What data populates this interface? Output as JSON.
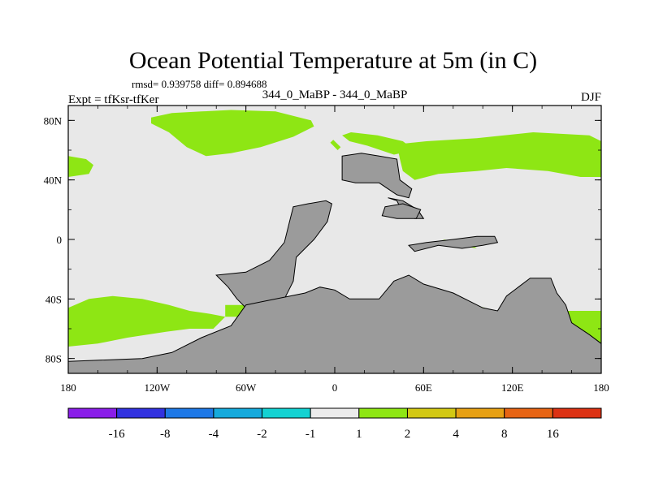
{
  "chart_data": {
    "type": "heatmap",
    "title": "Ocean Potential Temperature at 5m (in C)",
    "stats_label": "rmsd= 0.939758 diff= 0.894688",
    "subtitle_center": "344_0_MaBP - 344_0_MaBP",
    "subtitle_left": "Expt = tfKsr-tfKer",
    "subtitle_right": "DJF",
    "x_axis": {
      "range": [
        -180,
        180
      ],
      "ticks": [
        {
          "value": -180,
          "label": "180"
        },
        {
          "value": -120,
          "label": "120W"
        },
        {
          "value": -60,
          "label": "60W"
        },
        {
          "value": 0,
          "label": "0"
        },
        {
          "value": 60,
          "label": "60E"
        },
        {
          "value": 120,
          "label": "120E"
        },
        {
          "value": 180,
          "label": "180"
        }
      ]
    },
    "y_axis": {
      "range": [
        -90,
        90
      ],
      "ticks": [
        {
          "value": 80,
          "label": "80N"
        },
        {
          "value": 40,
          "label": "40N"
        },
        {
          "value": 0,
          "label": "0"
        },
        {
          "value": -40,
          "label": "40S"
        },
        {
          "value": -80,
          "label": "80S"
        }
      ]
    },
    "colorbar": {
      "labels": [
        "-16",
        "-8",
        "-4",
        "-2",
        "-1",
        "1",
        "2",
        "4",
        "8",
        "16"
      ],
      "colors": [
        "#8a1ee8",
        "#3232e0",
        "#1e78e6",
        "#16aadc",
        "#14d2d2",
        "#ebebeb",
        "#8ee614",
        "#d2c814",
        "#e6a014",
        "#e66414",
        "#dc3214"
      ]
    },
    "colors": {
      "ocean_neutral": "#e8e8e8",
      "land": "#9b9b9b",
      "warm_1_2": "#8ee614",
      "warm_2_4": "#d2c814",
      "warm_4_8": "#e6a014"
    },
    "regions": [
      {
        "name": "north-pacific-warm-band",
        "band": "1 to 2",
        "polygon": [
          [
            -124,
            82
          ],
          [
            -110,
            85
          ],
          [
            -90,
            86
          ],
          [
            -70,
            87
          ],
          [
            -40,
            86
          ],
          [
            -16,
            80
          ],
          [
            -14,
            76
          ],
          [
            -28,
            69
          ],
          [
            -50,
            62
          ],
          [
            -70,
            58
          ],
          [
            -87,
            56
          ],
          [
            -100,
            62
          ],
          [
            -112,
            72
          ],
          [
            -124,
            78
          ]
        ]
      },
      {
        "name": "west-edge-warm-patch",
        "band": "1 to 2",
        "polygon": [
          [
            -180,
            56
          ],
          [
            -168,
            54
          ],
          [
            -163,
            50
          ],
          [
            -166,
            44
          ],
          [
            -180,
            42
          ]
        ]
      },
      {
        "name": "north-atlantic-warm-strip-a",
        "band": "1 to 2",
        "polygon": [
          [
            -3,
            65
          ],
          [
            -1,
            67
          ],
          [
            4,
            62
          ],
          [
            2,
            60
          ]
        ]
      },
      {
        "name": "north-atlantic-warm-strip-b",
        "band": "1 to 2",
        "polygon": [
          [
            5,
            70
          ],
          [
            11,
            72
          ],
          [
            29,
            70
          ],
          [
            46,
            66
          ],
          [
            54,
            60
          ],
          [
            40,
            57
          ],
          [
            22,
            63
          ],
          [
            10,
            66
          ]
        ]
      },
      {
        "name": "eurasia-warm-band",
        "band": "1 to 2",
        "polygon": [
          [
            42,
            64
          ],
          [
            62,
            66
          ],
          [
            96,
            68
          ],
          [
            134,
            72
          ],
          [
            172,
            70
          ],
          [
            180,
            66
          ],
          [
            180,
            42
          ],
          [
            166,
            42
          ],
          [
            144,
            46
          ],
          [
            116,
            48
          ],
          [
            96,
            46
          ],
          [
            70,
            44
          ],
          [
            54,
            40
          ],
          [
            46,
            46
          ],
          [
            44,
            54
          ]
        ]
      },
      {
        "name": "equatorial-indian-warm-sliver",
        "band": "1 to 2",
        "polygon": [
          [
            73,
            0
          ],
          [
            83,
            -4
          ],
          [
            96,
            -6
          ],
          [
            90,
            -2
          ]
        ]
      },
      {
        "name": "southern-ocean-warm-band-a",
        "band": "1 to 2",
        "polygon": [
          [
            50,
            -30
          ],
          [
            60,
            -32
          ],
          [
            85,
            -40
          ],
          [
            98,
            -46
          ],
          [
            94,
            -50
          ],
          [
            82,
            -46
          ],
          [
            60,
            -38
          ],
          [
            48,
            -34
          ]
        ]
      },
      {
        "name": "southern-ocean-warm-band-b",
        "band": "1 to 2",
        "polygon": [
          [
            88,
            -42
          ],
          [
            108,
            -48
          ],
          [
            116,
            -52
          ],
          [
            110,
            -54
          ],
          [
            96,
            -52
          ]
        ]
      },
      {
        "name": "southern-ocean-warm-band-c",
        "band": "1 to 2",
        "polygon": [
          [
            156,
            -48
          ],
          [
            180,
            -48
          ],
          [
            180,
            -70
          ],
          [
            168,
            -68
          ],
          [
            158,
            -56
          ]
        ]
      },
      {
        "name": "south-pacific-warm-band",
        "band": "1 to 2",
        "polygon": [
          [
            -180,
            -46
          ],
          [
            -166,
            -40
          ],
          [
            -150,
            -38
          ],
          [
            -130,
            -40
          ],
          [
            -112,
            -44
          ],
          [
            -98,
            -48
          ],
          [
            -84,
            -50
          ],
          [
            -74,
            -52
          ],
          [
            -82,
            -60
          ],
          [
            -98,
            -60
          ],
          [
            -114,
            -62
          ],
          [
            -140,
            -66
          ],
          [
            -160,
            -70
          ],
          [
            -180,
            -72
          ]
        ]
      },
      {
        "name": "south-atlantic-warm-band",
        "band": "1 to 2",
        "polygon": [
          [
            -74,
            -44
          ],
          [
            -60,
            -44
          ],
          [
            -40,
            -46
          ],
          [
            -20,
            -48
          ],
          [
            -10,
            -52
          ],
          [
            -20,
            -54
          ],
          [
            -40,
            -52
          ],
          [
            -58,
            -52
          ],
          [
            -74,
            -52
          ]
        ]
      },
      {
        "name": "antarctic-coast-warm-strip",
        "band": "1 to 2",
        "polygon": [
          [
            -72,
            -70
          ],
          [
            -60,
            -66
          ],
          [
            -40,
            -62
          ],
          [
            -30,
            -64
          ],
          [
            -40,
            -70
          ],
          [
            -55,
            -76
          ],
          [
            -74,
            -80
          ],
          [
            -96,
            -84
          ],
          [
            -130,
            -84
          ],
          [
            -140,
            -82
          ],
          [
            -120,
            -78
          ],
          [
            -96,
            -74
          ]
        ]
      },
      {
        "name": "far-south-pacific-warm-strip",
        "band": "1 to 2",
        "polygon": [
          [
            140,
            -76
          ],
          [
            150,
            -76
          ],
          [
            162,
            -80
          ],
          [
            148,
            -80
          ]
        ]
      },
      {
        "name": "weddell-warm-core",
        "band": "2 to 4",
        "polygon": [
          [
            -115,
            -78
          ],
          [
            -100,
            -74
          ],
          [
            -82,
            -70
          ],
          [
            -60,
            -66
          ],
          [
            -38,
            -64
          ],
          [
            -46,
            -72
          ],
          [
            -60,
            -78
          ],
          [
            -80,
            -80
          ],
          [
            -100,
            -82
          ],
          [
            -122,
            -82
          ]
        ]
      },
      {
        "name": "weddell-hot-streak",
        "band": "4 to 8",
        "polygon": [
          [
            -82,
            -74
          ],
          [
            -74,
            -74
          ],
          [
            -73,
            -75
          ],
          [
            -80,
            -75
          ]
        ]
      }
    ],
    "landmasses": [
      {
        "name": "north-atlantic-land",
        "polygon": [
          [
            5,
            56
          ],
          [
            18,
            58
          ],
          [
            30,
            56
          ],
          [
            42,
            54
          ],
          [
            44,
            40
          ],
          [
            52,
            34
          ],
          [
            50,
            28
          ],
          [
            42,
            30
          ],
          [
            36,
            34
          ],
          [
            30,
            38
          ],
          [
            14,
            38
          ],
          [
            5,
            40
          ]
        ]
      },
      {
        "name": "central-eurasia-land",
        "polygon": [
          [
            36,
            28
          ],
          [
            42,
            26
          ],
          [
            46,
            18
          ],
          [
            54,
            14
          ],
          [
            60,
            14
          ],
          [
            56,
            20
          ],
          [
            46,
            26
          ]
        ]
      },
      {
        "name": "small-eurasian-block",
        "polygon": [
          [
            34,
            22
          ],
          [
            46,
            24
          ],
          [
            58,
            20
          ],
          [
            55,
            14
          ],
          [
            42,
            14
          ],
          [
            32,
            16
          ]
        ]
      },
      {
        "name": "american-land",
        "polygon": [
          [
            -28,
            22
          ],
          [
            -18,
            24
          ],
          [
            -6,
            26
          ],
          [
            -2,
            24
          ],
          [
            -5,
            12
          ],
          [
            -14,
            0
          ],
          [
            -26,
            -12
          ],
          [
            -28,
            -28
          ],
          [
            -34,
            -40
          ],
          [
            -40,
            -44
          ],
          [
            -38,
            -48
          ],
          [
            -50,
            -50
          ],
          [
            -60,
            -46
          ],
          [
            -66,
            -40
          ],
          [
            -72,
            -32
          ],
          [
            -80,
            -24
          ],
          [
            -60,
            -22
          ],
          [
            -44,
            -14
          ],
          [
            -34,
            -2
          ],
          [
            -30,
            14
          ]
        ]
      },
      {
        "name": "india-asia-block",
        "polygon": [
          [
            50,
            -4
          ],
          [
            62,
            -2
          ],
          [
            80,
            0
          ],
          [
            96,
            2
          ],
          [
            108,
            2
          ],
          [
            110,
            -2
          ],
          [
            100,
            -4
          ],
          [
            86,
            -6
          ],
          [
            70,
            -4
          ],
          [
            54,
            -8
          ]
        ]
      },
      {
        "name": "southern-land",
        "polygon": [
          [
            -180,
            -82
          ],
          [
            -130,
            -80
          ],
          [
            -110,
            -76
          ],
          [
            -90,
            -66
          ],
          [
            -70,
            -58
          ],
          [
            -60,
            -44
          ],
          [
            -50,
            -42
          ],
          [
            -20,
            -36
          ],
          [
            -10,
            -32
          ],
          [
            0,
            -34
          ],
          [
            10,
            -40
          ],
          [
            20,
            -40
          ],
          [
            30,
            -40
          ],
          [
            40,
            -28
          ],
          [
            50,
            -24
          ],
          [
            60,
            -30
          ],
          [
            80,
            -36
          ],
          [
            100,
            -46
          ],
          [
            110,
            -48
          ],
          [
            116,
            -38
          ],
          [
            124,
            -32
          ],
          [
            132,
            -26
          ],
          [
            146,
            -26
          ],
          [
            150,
            -36
          ],
          [
            156,
            -44
          ],
          [
            160,
            -56
          ],
          [
            172,
            -64
          ],
          [
            180,
            -70
          ],
          [
            180,
            -90
          ],
          [
            -180,
            -90
          ]
        ]
      }
    ]
  }
}
